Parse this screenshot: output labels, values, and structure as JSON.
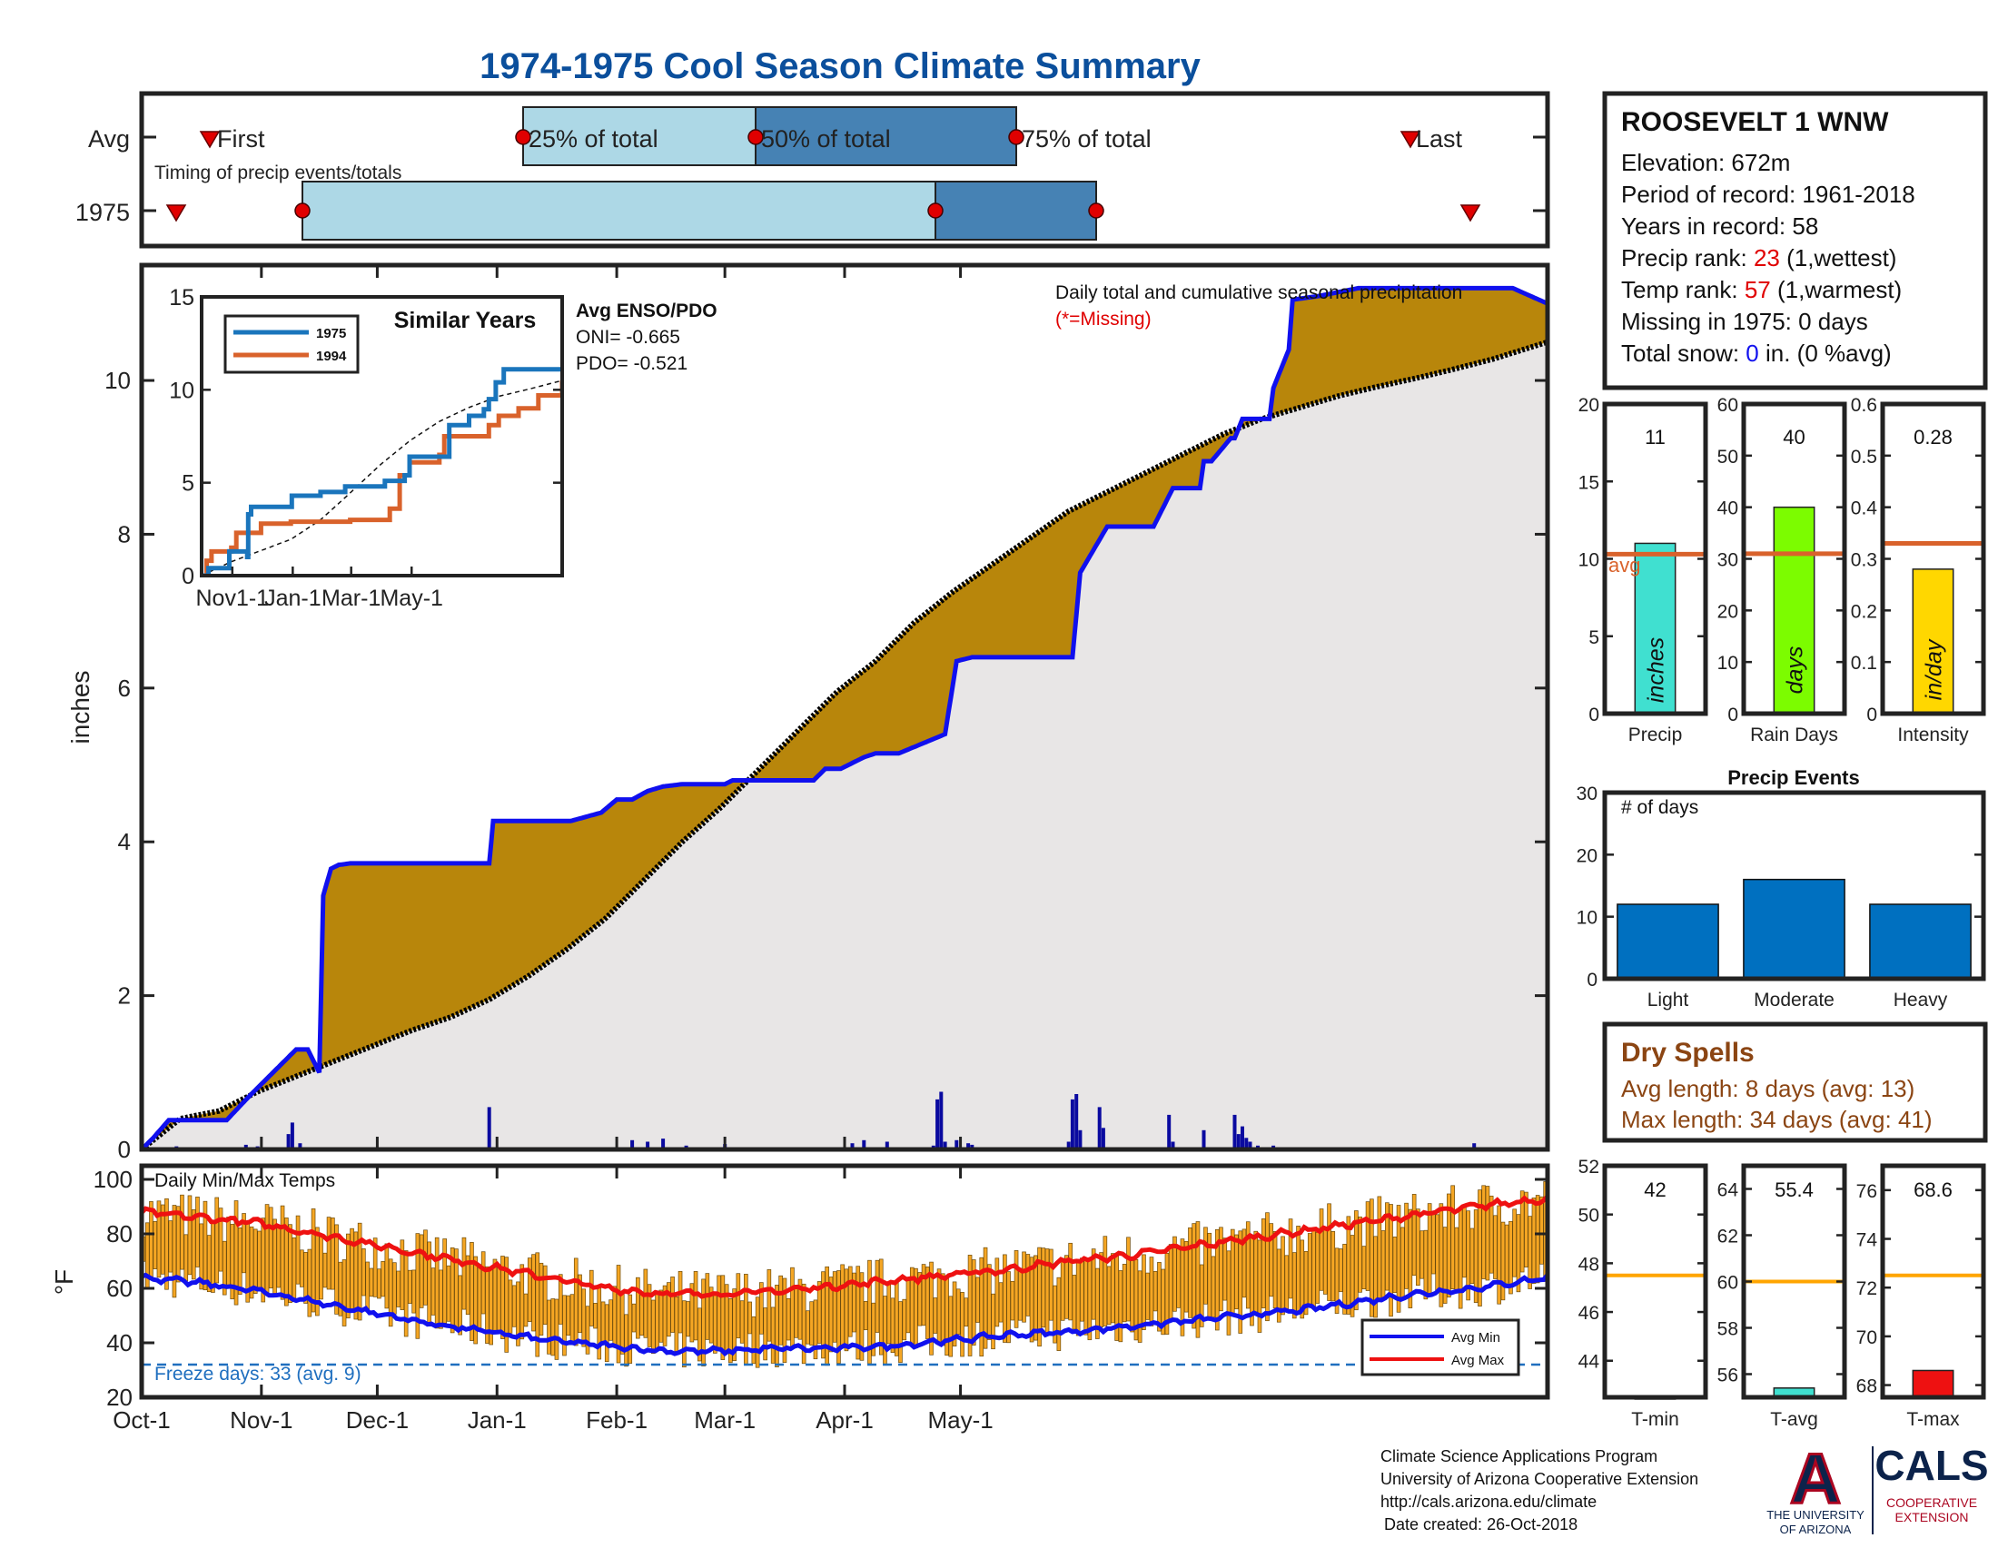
{
  "title": "1974-1975 Cool Season Climate Summary",
  "timing": {
    "avg_label": "Avg",
    "year_label": "1975",
    "caption": "Timing of precip events/totals",
    "first_label": "First",
    "last_label": "Last",
    "p25_label": "25% of total",
    "p50_label": "50% of total",
    "p75_label": "75% of total"
  },
  "station": {
    "name": "ROOSEVELT 1 WNW",
    "elevation": "Elevation: 672m",
    "period": "Period of record: 1961-2018",
    "years": "Years in record: 58",
    "precip_rank_prefix": "Precip rank: ",
    "precip_rank_value": "23",
    "precip_rank_suffix": " (1,wettest)",
    "temp_rank_prefix": "Temp rank: ",
    "temp_rank_value": "57",
    "temp_rank_suffix": " (1,warmest)",
    "missing": "Missing in 1975: 0 days",
    "snow_prefix": "Total snow: ",
    "snow_value": "0",
    "snow_suffix": " in. (0 %avg)"
  },
  "main": {
    "ylabel": "inches",
    "caption": "Daily total and cumulative seasonal precipitation",
    "missing_note": "(*=Missing)",
    "enso_title": "Avg ENSO/PDO",
    "oni": "ONI= -0.665",
    "pdo": "PDO= -0.521"
  },
  "inset": {
    "title": "Similar Years",
    "legend": [
      "1975",
      "1994"
    ]
  },
  "temps": {
    "caption": "Daily Min/Max Temps",
    "ylabel": "°F",
    "freeze": "Freeze days: 33 (avg. 9)",
    "legend_min": "Avg Min",
    "legend_max": "Avg Max"
  },
  "bars": {
    "precip": {
      "value_label": "11",
      "inner": "inches",
      "xlabel": "Precip",
      "avg_label": "avg"
    },
    "raindays": {
      "value_label": "40",
      "inner": "days",
      "xlabel": "Rain Days"
    },
    "intensity": {
      "value_label": "0.28",
      "inner": "in/day",
      "xlabel": "Intensity"
    }
  },
  "events": {
    "title": "Precip Events",
    "caption": "# of days"
  },
  "dry": {
    "title": "Dry Spells",
    "avg": "Avg length: 8 days (avg: 13)",
    "max": "Max length: 34 days (avg: 41)"
  },
  "tbars": {
    "tmin": {
      "value_label": "42",
      "xlabel": "T-min"
    },
    "tavg": {
      "value_label": "55.4",
      "xlabel": "T-avg"
    },
    "tmax": {
      "value_label": "68.6",
      "xlabel": "T-max"
    }
  },
  "footer": {
    "line1": "Climate Science Applications Program",
    "line2": "University of Arizona Cooperative Extension",
    "line3": "http://cals.arizona.edu/climate",
    "line4": "Date created: 26-Oct-2018",
    "ua_logo": "A",
    "ua_text1": "THE UNIVERSITY",
    "ua_text2": "OF ARIZONA",
    "cals_logo": "CALS",
    "cals_text1": "COOPERATIVE",
    "cals_text2": "EXTENSION"
  },
  "colors": {
    "above": "#228b22",
    "below": "#b8860b",
    "climo": "#e8e6e6",
    "obs": "#1010ee",
    "daily": "#0a0aa0",
    "tempbar": "#f5a623",
    "avgmax": "#ee1111",
    "avgmin": "#1111ee",
    "freeze": "#1f6fbf",
    "avgline": "#d9622b",
    "title": "#0b4f9c"
  },
  "chart_data": [
    {
      "type": "area",
      "name": "cumulative",
      "xlabel": "",
      "ylabel": "inches",
      "ylim": [
        0,
        11.5
      ],
      "xticks": [
        "Oct-1",
        "Nov-1",
        "Dec-1",
        "Jan-1",
        "Feb-1",
        "Mar-1",
        "Apr-1",
        "May-1"
      ],
      "yticks": [
        0,
        2,
        4,
        6,
        8,
        10
      ],
      "observed_1975_cumulative": {
        "days": [
          0,
          3,
          7,
          22,
          28,
          40,
          43,
          46,
          47,
          49,
          51,
          54,
          60,
          90,
          91,
          111,
          119,
          123,
          127,
          131,
          135,
          140,
          151,
          153,
          174,
          177,
          181,
          187,
          190,
          196,
          208,
          211,
          215,
          222,
          224,
          225,
          241,
          243,
          250,
          262,
          267,
          268,
          269,
          274,
          275,
          277,
          282,
          283,
          285,
          292,
          293,
          297,
          298,
          305,
          315,
          327,
          355,
          364
        ],
        "values": [
          0,
          0.15,
          0.38,
          0.38,
          0.7,
          1.3,
          1.3,
          1.0,
          3.3,
          3.65,
          3.7,
          3.72,
          3.72,
          3.72,
          4.27,
          4.27,
          4.38,
          4.55,
          4.55,
          4.66,
          4.72,
          4.75,
          4.75,
          4.8,
          4.8,
          4.95,
          4.95,
          5.1,
          5.15,
          5.15,
          5.4,
          6.35,
          6.4,
          6.4,
          6.4,
          6.4,
          6.4,
          7.5,
          8.1,
          8.1,
          8.6,
          8.6,
          8.6,
          8.6,
          8.95,
          8.95,
          9.25,
          9.25,
          9.5,
          9.5,
          9.9,
          10.4,
          11.05,
          11.1,
          11.2,
          11.2,
          11.2,
          11.0
        ]
      },
      "climo_cumulative": {
        "days": [
          0,
          10,
          20,
          30,
          40,
          50,
          60,
          70,
          80,
          90,
          100,
          110,
          120,
          130,
          140,
          150,
          160,
          170,
          180,
          190,
          200,
          210,
          220,
          230,
          240,
          250,
          260,
          270,
          280,
          290,
          300,
          310,
          320,
          330,
          340,
          350,
          364
        ],
        "values": [
          0,
          0.4,
          0.5,
          0.75,
          0.95,
          1.15,
          1.35,
          1.55,
          1.72,
          1.95,
          2.25,
          2.6,
          3.0,
          3.5,
          4.0,
          4.45,
          4.95,
          5.45,
          5.95,
          6.35,
          6.85,
          7.25,
          7.6,
          7.95,
          8.3,
          8.55,
          8.8,
          9.05,
          9.3,
          9.5,
          9.65,
          9.8,
          9.92,
          10.03,
          10.15,
          10.28,
          10.5
        ]
      },
      "daily_precip": {
        "days": [
          4,
          9,
          10,
          27,
          30,
          31,
          38,
          39,
          41,
          46,
          47,
          50,
          90,
          127,
          131,
          135,
          141,
          151,
          184,
          187,
          193,
          205,
          206,
          207,
          208,
          211,
          214,
          215,
          240,
          241,
          242,
          243,
          248,
          249,
          266,
          267,
          275,
          283,
          284,
          285,
          286,
          287,
          289,
          293,
          345
        ],
        "values": [
          0.02,
          0.04,
          0.02,
          0.06,
          0.04,
          0.02,
          0.2,
          0.35,
          0.08,
          0.03,
          0.02,
          0.02,
          0.55,
          0.12,
          0.1,
          0.14,
          0.05,
          0.07,
          0.08,
          0.12,
          0.1,
          0.05,
          0.65,
          0.75,
          0.1,
          0.12,
          0.08,
          0.06,
          0.1,
          0.65,
          0.72,
          0.25,
          0.55,
          0.28,
          0.45,
          0.1,
          0.25,
          0.45,
          0.2,
          0.3,
          0.15,
          0.1,
          0.05,
          0.05,
          0.08
        ]
      }
    },
    {
      "type": "line",
      "name": "similar-years",
      "title": "Similar Years",
      "xticks": [
        "Nov1-1",
        "Jan-1",
        "Mar-1",
        "May-1"
      ],
      "yticks": [
        0,
        5,
        10,
        15
      ],
      "ylim": [
        0,
        15
      ],
      "series": [
        {
          "name": "1975",
          "days": [
            0,
            7,
            22,
            28,
            40,
            46,
            47,
            50,
            90,
            91,
            120,
            145,
            175,
            185,
            205,
            210,
            240,
            250,
            270,
            285,
            290,
            297,
            305,
            364
          ],
          "values": [
            0,
            0.4,
            0.4,
            1.3,
            1.3,
            1.0,
            3.3,
            3.7,
            3.7,
            4.3,
            4.5,
            4.8,
            4.8,
            5.1,
            5.4,
            6.4,
            6.4,
            8.1,
            8.6,
            8.95,
            9.5,
            10.4,
            11.1,
            11.2
          ]
        },
        {
          "name": "1994",
          "days": [
            0,
            5,
            10,
            30,
            35,
            60,
            90,
            150,
            190,
            200,
            210,
            240,
            245,
            290,
            300,
            320,
            340,
            364
          ],
          "values": [
            0,
            0.8,
            1.3,
            1.5,
            2.3,
            2.8,
            2.9,
            3.0,
            3.6,
            5.4,
            6.1,
            6.5,
            7.5,
            8.1,
            8.6,
            9.0,
            9.7,
            10.5
          ]
        },
        {
          "name": "",
          "days": [
            0,
            30,
            60,
            90,
            120,
            150,
            180,
            210,
            240,
            270,
            300,
            330,
            364
          ],
          "values": [
            0,
            0.75,
            1.35,
            1.95,
            3.0,
            4.45,
            5.95,
            7.25,
            8.3,
            9.05,
            9.65,
            10.03,
            10.5
          ]
        }
      ]
    },
    {
      "type": "bar",
      "name": "daily-temps",
      "ylabel": "°F",
      "ylim": [
        20,
        105
      ],
      "yticks": [
        20,
        40,
        60,
        80,
        100
      ],
      "avg_max": {
        "days": [
          0,
          15,
          30,
          45,
          60,
          75,
          90,
          105,
          120,
          135,
          150,
          165,
          180,
          195,
          210,
          225,
          240,
          255,
          270,
          285,
          300,
          315,
          330,
          345,
          364
        ],
        "values": [
          88,
          86,
          84,
          80,
          76,
          72,
          68,
          64,
          60,
          58,
          58,
          59,
          61,
          63,
          65,
          67,
          70,
          72,
          75,
          78,
          81,
          84,
          87,
          90,
          93
        ]
      },
      "avg_min": {
        "days": [
          0,
          15,
          30,
          45,
          60,
          75,
          90,
          105,
          120,
          135,
          150,
          165,
          180,
          195,
          210,
          225,
          240,
          255,
          270,
          285,
          300,
          315,
          330,
          345,
          364
        ],
        "values": [
          64,
          62,
          59,
          55,
          51,
          47,
          44,
          41,
          39,
          37,
          37,
          38,
          38,
          39,
          41,
          43,
          44,
          46,
          48,
          50,
          52,
          55,
          58,
          60,
          64
        ]
      },
      "freeze_line": 32
    },
    {
      "type": "bar",
      "name": "season-totals",
      "categories": [
        "Precip",
        "Rain Days",
        "Intensity"
      ],
      "values": [
        11,
        40,
        0.28
      ],
      "averages": [
        10.3,
        31,
        0.33
      ],
      "ylims": [
        [
          0,
          20
        ],
        [
          0,
          60
        ],
        [
          0,
          0.6
        ]
      ]
    },
    {
      "type": "bar",
      "name": "precip-events",
      "title": "Precip Events",
      "categories": [
        "Light",
        "Moderate",
        "Heavy"
      ],
      "values": [
        12,
        16,
        12
      ],
      "ylim": [
        0,
        30
      ]
    },
    {
      "type": "bar",
      "name": "temp-summaries",
      "categories": [
        "T-min",
        "T-avg",
        "T-max"
      ],
      "values": [
        42,
        55.4,
        68.6
      ],
      "averages": [
        47.5,
        60,
        72.5
      ],
      "ylims": [
        [
          42.5,
          52
        ],
        [
          55,
          65
        ],
        [
          67.5,
          77
        ]
      ]
    }
  ]
}
